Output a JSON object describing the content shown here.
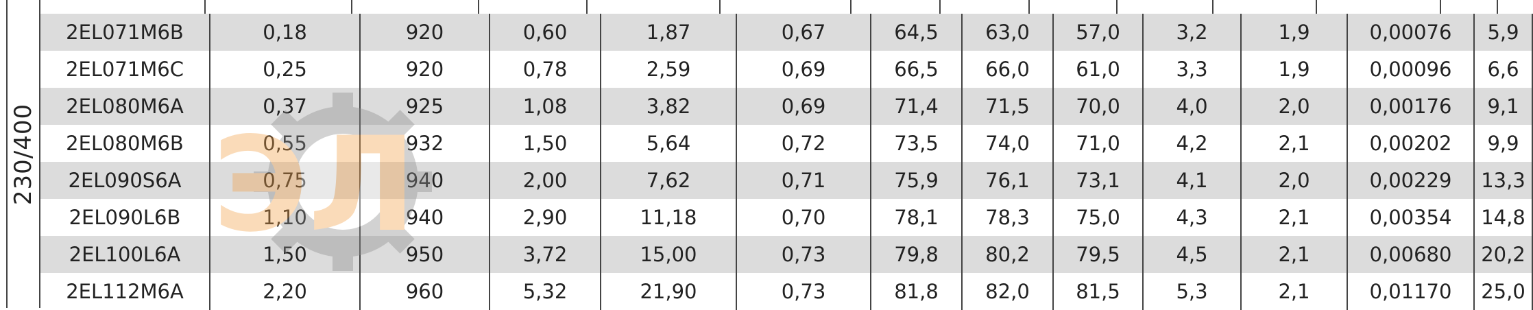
{
  "voltage_label": "230/400",
  "rows": [
    {
      "model": "2EL071M6B",
      "c1": "0,18",
      "c2": "920",
      "c3": "0,60",
      "c4": "1,87",
      "c5": "0,67",
      "c6": "64,5",
      "c7": "63,0",
      "c8": "57,0",
      "c9": "3,2",
      "c10": "1,9",
      "c11": "0,00076",
      "c12": "5,9"
    },
    {
      "model": "2EL071M6C",
      "c1": "0,25",
      "c2": "920",
      "c3": "0,78",
      "c4": "2,59",
      "c5": "0,69",
      "c6": "66,5",
      "c7": "66,0",
      "c8": "61,0",
      "c9": "3,3",
      "c10": "1,9",
      "c11": "0,00096",
      "c12": "6,6"
    },
    {
      "model": "2EL080M6A",
      "c1": "0,37",
      "c2": "925",
      "c3": "1,08",
      "c4": "3,82",
      "c5": "0,69",
      "c6": "71,4",
      "c7": "71,5",
      "c8": "70,0",
      "c9": "4,0",
      "c10": "2,0",
      "c11": "0,00176",
      "c12": "9,1"
    },
    {
      "model": "2EL080M6B",
      "c1": "0,55",
      "c2": "932",
      "c3": "1,50",
      "c4": "5,64",
      "c5": "0,72",
      "c6": "73,5",
      "c7": "74,0",
      "c8": "71,0",
      "c9": "4,2",
      "c10": "2,1",
      "c11": "0,00202",
      "c12": "9,9"
    },
    {
      "model": "2EL090S6A",
      "c1": "0,75",
      "c2": "940",
      "c3": "2,00",
      "c4": "7,62",
      "c5": "0,71",
      "c6": "75,9",
      "c7": "76,1",
      "c8": "73,1",
      "c9": "4,1",
      "c10": "2,0",
      "c11": "0,00229",
      "c12": "13,3"
    },
    {
      "model": "2EL090L6B",
      "c1": "1,10",
      "c2": "940",
      "c3": "2,90",
      "c4": "11,18",
      "c5": "0,70",
      "c6": "78,1",
      "c7": "78,3",
      "c8": "75,0",
      "c9": "4,3",
      "c10": "2,1",
      "c11": "0,00354",
      "c12": "14,8"
    },
    {
      "model": "2EL100L6A",
      "c1": "1,50",
      "c2": "950",
      "c3": "3,72",
      "c4": "15,00",
      "c5": "0,73",
      "c6": "79,8",
      "c7": "80,2",
      "c8": "79,5",
      "c9": "4,5",
      "c10": "2,1",
      "c11": "0,00680",
      "c12": "20,2"
    },
    {
      "model": "2EL112M6A",
      "c1": "2,20",
      "c2": "960",
      "c3": "5,32",
      "c4": "21,90",
      "c5": "0,73",
      "c6": "81,8",
      "c7": "82,0",
      "c8": "81,5",
      "c9": "5,3",
      "c10": "2,1",
      "c11": "0,01170",
      "c12": "25,0"
    }
  ],
  "watermark": {
    "icon": "gear-logo-icon",
    "text": "ЭЛ",
    "accent_color": "#f3a24a",
    "gear_color": "#8c8c8c"
  }
}
